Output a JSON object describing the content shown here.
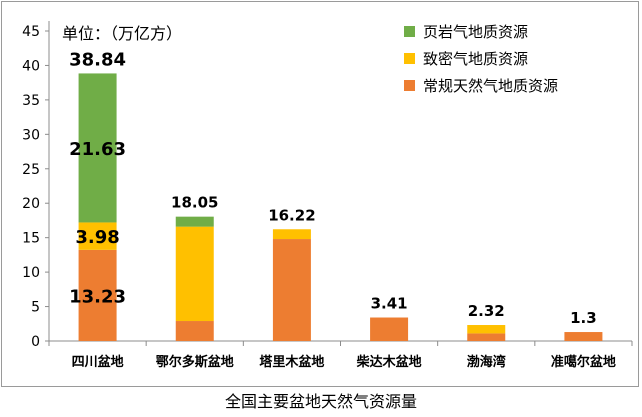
{
  "caption": "全国主要盆地天然气资源量",
  "chart_data": {
    "type": "bar",
    "stacked": true,
    "unit_label": "单位：（万亿方）",
    "categories": [
      "四川盆地",
      "鄂尔多斯盆地",
      "塔里木盆地",
      "柴达木盆地",
      "渤海湾",
      "准噶尔盆地"
    ],
    "series": [
      {
        "name": "常规天然气地质资源",
        "color": "#ED7D31",
        "values": [
          13.23,
          2.9,
          14.8,
          3.41,
          1.1,
          1.3
        ]
      },
      {
        "name": "致密气地质资源",
        "color": "#FFC000",
        "values": [
          3.98,
          13.7,
          1.42,
          0,
          1.22,
          0
        ]
      },
      {
        "name": "页岩气地质资源",
        "color": "#70AD47",
        "values": [
          21.63,
          1.45,
          0,
          0,
          0,
          0
        ]
      }
    ],
    "totals": [
      "38.84",
      "18.05",
      "16.22",
      "3.41",
      "2.32",
      "1.3"
    ],
    "segment_labels": [
      {
        "category": 0,
        "series": 0,
        "text": "13.23"
      },
      {
        "category": 0,
        "series": 1,
        "text": "3.98"
      },
      {
        "category": 0,
        "series": 2,
        "text": "21.63"
      }
    ],
    "yticks": [
      0,
      5,
      10,
      15,
      20,
      25,
      30,
      35,
      40,
      45
    ],
    "ylim": [
      0,
      45
    ],
    "legend_order": [
      2,
      1,
      0
    ],
    "legend_position": "top-right",
    "grid": false
  }
}
